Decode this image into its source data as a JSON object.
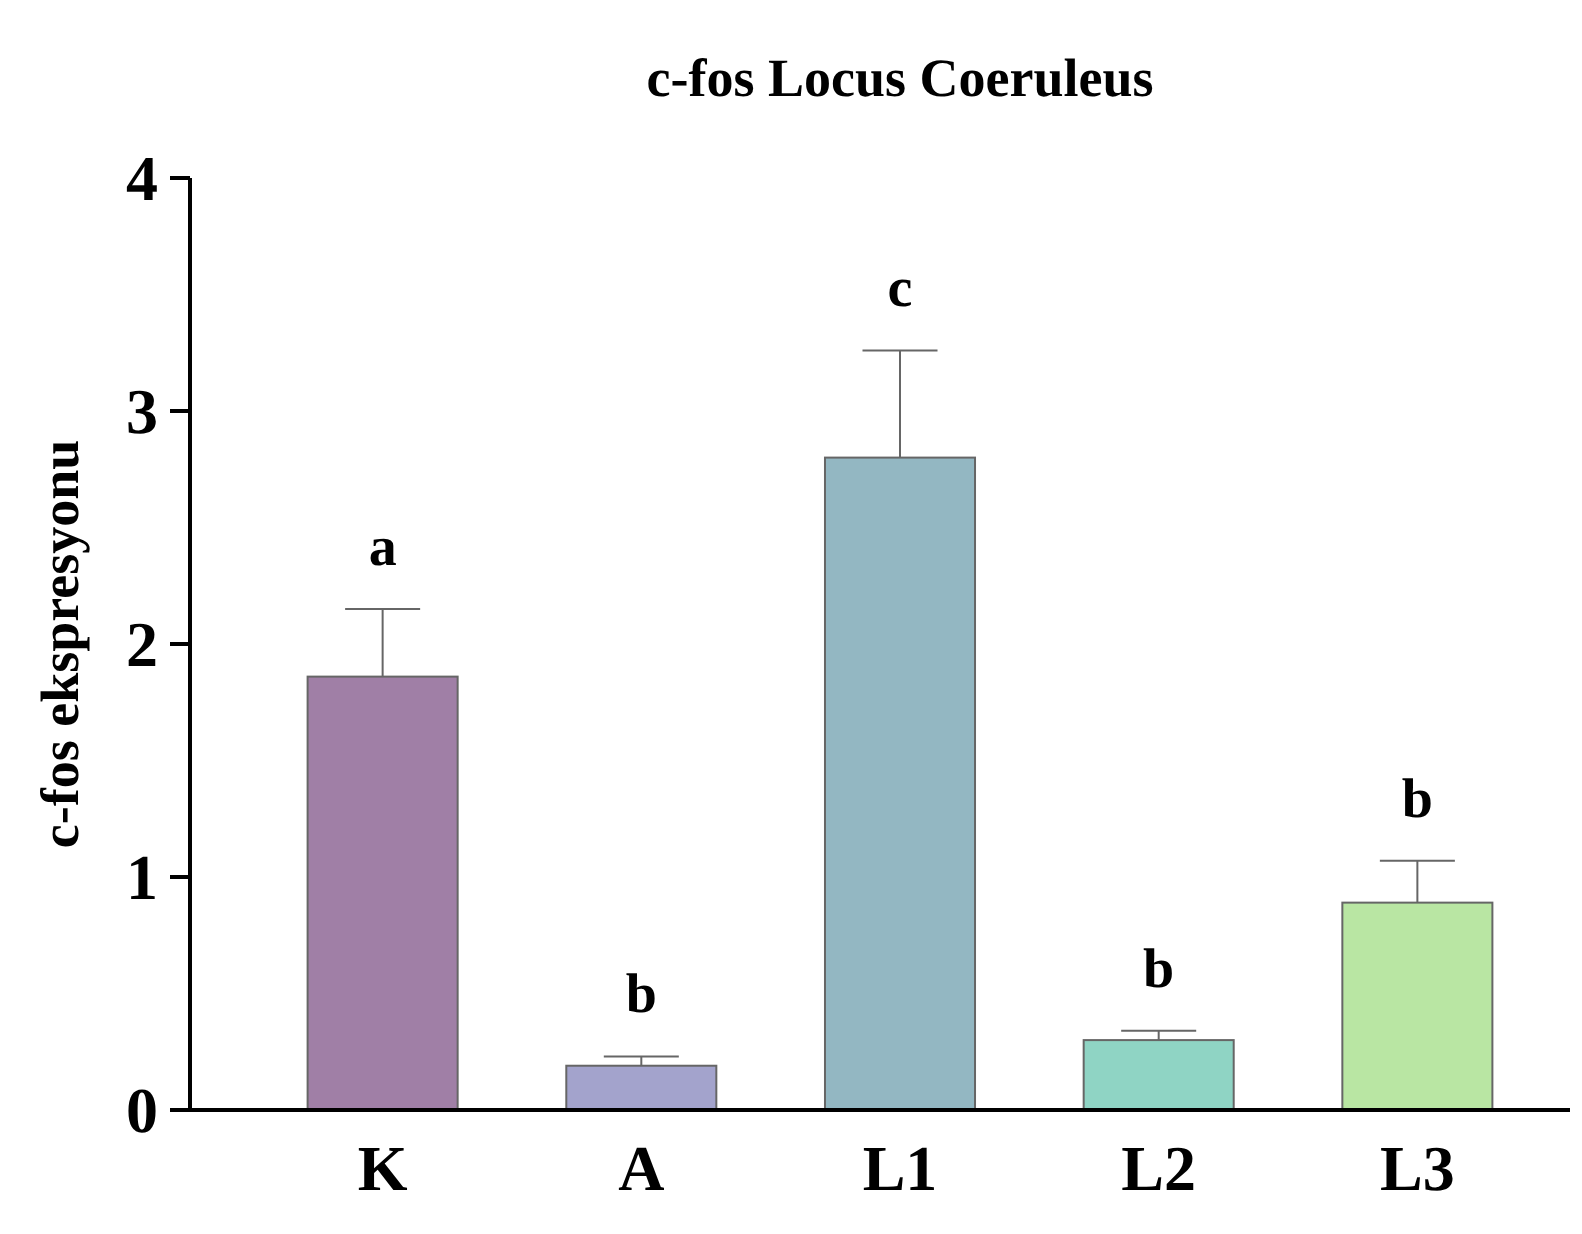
{
  "chart_data": {
    "type": "bar",
    "title": "c-fos Locus Coeruleus",
    "ylabel": "c-fos ekspresyonu",
    "categories": [
      "K",
      "A",
      "L1",
      "L2",
      "L3"
    ],
    "values": [
      1.86,
      0.19,
      2.8,
      0.3,
      0.89
    ],
    "colors": [
      "#a07fa6",
      "#a3a3cc",
      "#93b7c2",
      "#8fd4c4",
      "#b9e6a3"
    ],
    "errors": [
      [
        1.86,
        2.15
      ],
      [
        0.19,
        0.23
      ],
      [
        2.8,
        3.26
      ],
      [
        0.3,
        0.34
      ],
      [
        0.89,
        1.07
      ]
    ],
    "ylim": [
      0,
      4
    ],
    "yticks": [
      0,
      1,
      2,
      3,
      4
    ],
    "grid": false,
    "annotations": [
      {
        "text": "a",
        "x": "K",
        "y": 2.15
      },
      {
        "text": "b",
        "x": "A",
        "y": 0.23
      },
      {
        "text": "c",
        "x": "L1",
        "y": 3.26
      },
      {
        "text": "b",
        "x": "L2",
        "y": 0.34
      },
      {
        "text": "b",
        "x": "L3",
        "y": 1.07
      }
    ]
  }
}
